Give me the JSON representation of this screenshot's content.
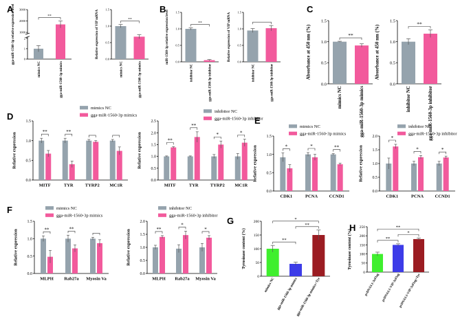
{
  "colors": {
    "gray": "#95a3ad",
    "pink": "#f25a9c",
    "green": "#3fef2e",
    "blue": "#3d3ce8",
    "darkred": "#9b1c22"
  },
  "panel_labels": [
    "A",
    "B",
    "C",
    "D",
    "E",
    "F",
    "G",
    "H"
  ],
  "chart_data": [
    {
      "id": "A1",
      "panel": "A",
      "type": "bar",
      "ylabel": "gga-miR-1560-3p relative expression level",
      "yticks": [
        "0",
        "1",
        "2",
        "1000",
        "2000",
        "3000"
      ],
      "ylim": [
        0,
        3000
      ],
      "categories": [
        "mimics NC",
        "gga-miR-1560-3p mimics"
      ],
      "values": [
        1.0,
        1700
      ],
      "errors": [
        0.3,
        300
      ],
      "colors": [
        "gray",
        "pink"
      ],
      "broken_axis": true,
      "significance": [
        {
          "from": 0,
          "to": 1,
          "label": "**"
        }
      ]
    },
    {
      "id": "A2",
      "panel": "A",
      "type": "bar",
      "ylabel": "Relative expression of VIP mRNA",
      "yticks": [
        "0.0",
        "0.5",
        "1.0",
        "1.5"
      ],
      "ylim": [
        0,
        1.5
      ],
      "categories": [
        "mimics NC",
        "gga-miR-1560-3p mimics"
      ],
      "values": [
        1.0,
        0.68
      ],
      "errors": [
        0.05,
        0.06
      ],
      "colors": [
        "gray",
        "pink"
      ],
      "significance": [
        {
          "from": 0,
          "to": 1,
          "label": "**"
        }
      ]
    },
    {
      "id": "B1",
      "panel": "B",
      "type": "bar",
      "ylabel": "miR-1560-3p relative expression level",
      "yticks": [
        "0.0",
        "0.5",
        "1.0",
        "1.5"
      ],
      "ylim": [
        0,
        1.5
      ],
      "categories": [
        "inhibitor NC",
        "gga-miR-1560-3p inhibitor"
      ],
      "values": [
        1.0,
        0.05
      ],
      "errors": [
        0.03,
        0.02
      ],
      "colors": [
        "gray",
        "pink"
      ],
      "significance": [
        {
          "from": 0,
          "to": 1,
          "label": "**"
        }
      ]
    },
    {
      "id": "B2",
      "panel": "B",
      "type": "bar",
      "ylabel": "Relative expression of VIP mRNA",
      "yticks": [
        "0.0",
        "0.5",
        "1.0",
        "1.5"
      ],
      "ylim": [
        0,
        1.5
      ],
      "categories": [
        "inhibitor NC",
        "gga-miR-1560-3p inhibitor"
      ],
      "values": [
        0.95,
        1.02
      ],
      "errors": [
        0.06,
        0.08
      ],
      "colors": [
        "gray",
        "pink"
      ],
      "significance": [
        {
          "from": 0,
          "to": 1,
          "label": ""
        }
      ]
    },
    {
      "id": "C1",
      "panel": "C",
      "type": "bar",
      "ylabel": "Absorbance at 450 nm (%)",
      "yticks": [
        "0.0",
        "0.5",
        "1.0",
        "1.5"
      ],
      "ylim": [
        0,
        1.5
      ],
      "categories": [
        "mimics NC",
        "gga-miR-1560-3p mimics"
      ],
      "values": [
        1.0,
        0.91
      ],
      "errors": [
        0.01,
        0.04
      ],
      "colors": [
        "gray",
        "pink"
      ],
      "significance": [
        {
          "from": 0,
          "to": 1,
          "label": "**"
        }
      ]
    },
    {
      "id": "C2",
      "panel": "C",
      "type": "bar",
      "ylabel": "Absorbance at 450 nm (%)",
      "yticks": [
        "0.0",
        "0.5",
        "1.0",
        "1.5"
      ],
      "ylim": [
        0,
        1.5
      ],
      "categories": [
        "inhibitor NC",
        "gga-miR-1560-3p inhibitor"
      ],
      "values": [
        1.0,
        1.19
      ],
      "errors": [
        0.07,
        0.09
      ],
      "colors": [
        "gray",
        "pink"
      ],
      "significance": [
        {
          "from": 0,
          "to": 1,
          "label": "**"
        }
      ]
    },
    {
      "id": "D1",
      "panel": "D",
      "type": "bar",
      "ylabel": "Relative expression",
      "yticks": [
        "0.0",
        "0.5",
        "1.0",
        "1.5"
      ],
      "ylim": [
        0,
        1.5
      ],
      "categories": [
        "MITF",
        "TYR",
        "TYRP2",
        "MC1R"
      ],
      "series": [
        {
          "name": "mimics NC",
          "color": "gray",
          "values": [
            1.0,
            1.0,
            1.0,
            1.0
          ],
          "errors": [
            0.06,
            0.06,
            0.03,
            0.03
          ]
        },
        {
          "name": "gga-miR-1560-3p mimics",
          "color": "pink",
          "values": [
            0.67,
            0.4,
            0.97,
            0.74
          ],
          "errors": [
            0.08,
            0.08,
            0.03,
            0.1
          ]
        }
      ],
      "significance": [
        {
          "cat": 0,
          "label": "**"
        },
        {
          "cat": 1,
          "label": "**"
        },
        {
          "cat": 2,
          "label": ""
        },
        {
          "cat": 3,
          "label": ""
        }
      ]
    },
    {
      "id": "D2",
      "panel": "D",
      "type": "bar",
      "ylabel": "Relative expression",
      "yticks": [
        "0.0",
        "0.5",
        "1.0",
        "1.5",
        "2.0",
        "2.5"
      ],
      "ylim": [
        0,
        2.5
      ],
      "categories": [
        "MITF",
        "TYR",
        "TYRP2",
        "MC1R"
      ],
      "series": [
        {
          "name": "inhibitor NC",
          "color": "gray",
          "values": [
            1.0,
            1.0,
            1.0,
            1.0
          ],
          "errors": [
            0.02,
            0.02,
            0.08,
            0.12
          ]
        },
        {
          "name": "gga-miR-1560-3p inhibitor",
          "color": "pink",
          "values": [
            1.38,
            1.82,
            1.5,
            1.58
          ],
          "errors": [
            0.03,
            0.22,
            0.15,
            0.15
          ]
        }
      ],
      "significance": [
        {
          "cat": 0,
          "label": "**"
        },
        {
          "cat": 1,
          "label": "**"
        },
        {
          "cat": 2,
          "label": "*"
        },
        {
          "cat": 3,
          "label": "*"
        }
      ]
    },
    {
      "id": "E1",
      "panel": "E",
      "type": "bar",
      "ylabel": "Relative expression",
      "yticks": [
        "0.0",
        "0.5",
        "1.0",
        "1.5"
      ],
      "ylim": [
        0,
        1.5
      ],
      "categories": [
        "CDK1",
        "PCNA",
        "CCND1"
      ],
      "series": [
        {
          "name": "mimics NC",
          "color": "gray",
          "values": [
            0.92,
            1.0,
            1.0
          ],
          "errors": [
            0.12,
            0.05,
            0.02
          ]
        },
        {
          "name": "gga-miR-1560-3p mimics",
          "color": "pink",
          "values": [
            0.62,
            0.92,
            0.73
          ],
          "errors": [
            0.1,
            0.08,
            0.03
          ]
        }
      ],
      "significance": [
        {
          "cat": 0,
          "label": "*"
        },
        {
          "cat": 1,
          "label": "*"
        },
        {
          "cat": 2,
          "label": "**"
        }
      ]
    },
    {
      "id": "E2",
      "panel": "E",
      "type": "bar",
      "ylabel": "Relative expression",
      "yticks": [
        "0.0",
        "0.5",
        "1.0",
        "1.5",
        "2.0"
      ],
      "ylim": [
        0,
        2.0
      ],
      "categories": [
        "CDK1",
        "PCNA",
        "CCND1"
      ],
      "series": [
        {
          "name": "inhibitor NC",
          "color": "gray",
          "values": [
            1.0,
            1.0,
            1.0
          ],
          "errors": [
            0.2,
            0.08,
            0.08
          ]
        },
        {
          "name": "gga-miR-1560-3p inhibitor",
          "color": "pink",
          "values": [
            1.62,
            1.23,
            1.22
          ],
          "errors": [
            0.08,
            0.06,
            0.05
          ]
        }
      ],
      "significance": [
        {
          "cat": 0,
          "label": "*"
        },
        {
          "cat": 1,
          "label": "*"
        },
        {
          "cat": 2,
          "label": "*"
        }
      ]
    },
    {
      "id": "F1",
      "panel": "F",
      "type": "bar",
      "ylabel": "Relative expression",
      "yticks": [
        "0.0",
        "0.5",
        "1.0",
        "1.5"
      ],
      "ylim": [
        0,
        1.5
      ],
      "categories": [
        "MLPH",
        "Rab27a",
        "Myosin Va"
      ],
      "series": [
        {
          "name": "mimics NC",
          "color": "gray",
          "values": [
            1.0,
            1.0,
            1.0
          ],
          "errors": [
            0.08,
            0.1,
            0.04
          ]
        },
        {
          "name": "gga-miR-1560-3p mimics",
          "color": "pink",
          "values": [
            0.48,
            0.72,
            0.87
          ],
          "errors": [
            0.18,
            0.1,
            0.1
          ]
        }
      ],
      "significance": [
        {
          "cat": 0,
          "label": "**"
        },
        {
          "cat": 1,
          "label": "**"
        },
        {
          "cat": 2,
          "label": ""
        }
      ]
    },
    {
      "id": "F2",
      "panel": "F",
      "type": "bar",
      "ylabel": "Relative expression",
      "yticks": [
        "0.0",
        "0.5",
        "1.0",
        "1.5",
        "2.0"
      ],
      "ylim": [
        0,
        2.0
      ],
      "categories": [
        "MLPH",
        "Rab27a",
        "Myosin Va"
      ],
      "series": [
        {
          "name": "inhibitor NC",
          "color": "gray",
          "values": [
            1.0,
            0.95,
            1.0
          ],
          "errors": [
            0.08,
            0.15,
            0.15
          ]
        },
        {
          "name": "gga-miR-1560-3p inhibitor",
          "color": "pink",
          "values": [
            1.4,
            1.47,
            1.37
          ],
          "errors": [
            0.05,
            0.15,
            0.08
          ]
        }
      ],
      "significance": [
        {
          "cat": 0,
          "label": "**"
        },
        {
          "cat": 1,
          "label": "*"
        },
        {
          "cat": 2,
          "label": "*"
        }
      ]
    },
    {
      "id": "G",
      "panel": "G",
      "type": "bar",
      "ylabel": "Tyrosinase content (%)",
      "yticks": [
        "0",
        "50",
        "100",
        "150",
        "200"
      ],
      "ylim": [
        0,
        200
      ],
      "categories": [
        "mimics NC",
        "gga-miR-1560-3p mimics",
        "gga-miR-1560-3p mimics+Tyr"
      ],
      "values": [
        100,
        45,
        150
      ],
      "errors": [
        12,
        6,
        18
      ],
      "colors": [
        "green",
        "blue",
        "darkred"
      ],
      "significance": [
        {
          "from": 0,
          "to": 1,
          "label": "**"
        },
        {
          "from": 1,
          "to": 2,
          "label": "**"
        },
        {
          "from": 0,
          "to": 2,
          "label": "*"
        }
      ]
    },
    {
      "id": "H",
      "panel": "H",
      "type": "bar",
      "ylabel": "Tyrosinase content (%)",
      "yticks": [
        "0",
        "50",
        "100",
        "150",
        "200",
        "250"
      ],
      "ylim": [
        0,
        250
      ],
      "categories": [
        "pcDNA3.1-3xFlag",
        "pcDNA3.1-VIP-3xFlag",
        "pcDNA3.1-VIP-3xFlag+Tyr"
      ],
      "values": [
        100,
        150,
        182
      ],
      "errors": [
        10,
        6,
        6
      ],
      "colors": [
        "green",
        "blue",
        "darkred"
      ],
      "significance": [
        {
          "from": 0,
          "to": 1,
          "label": "**"
        },
        {
          "from": 1,
          "to": 2,
          "label": "*"
        },
        {
          "from": 0,
          "to": 2,
          "label": "**"
        }
      ]
    }
  ]
}
